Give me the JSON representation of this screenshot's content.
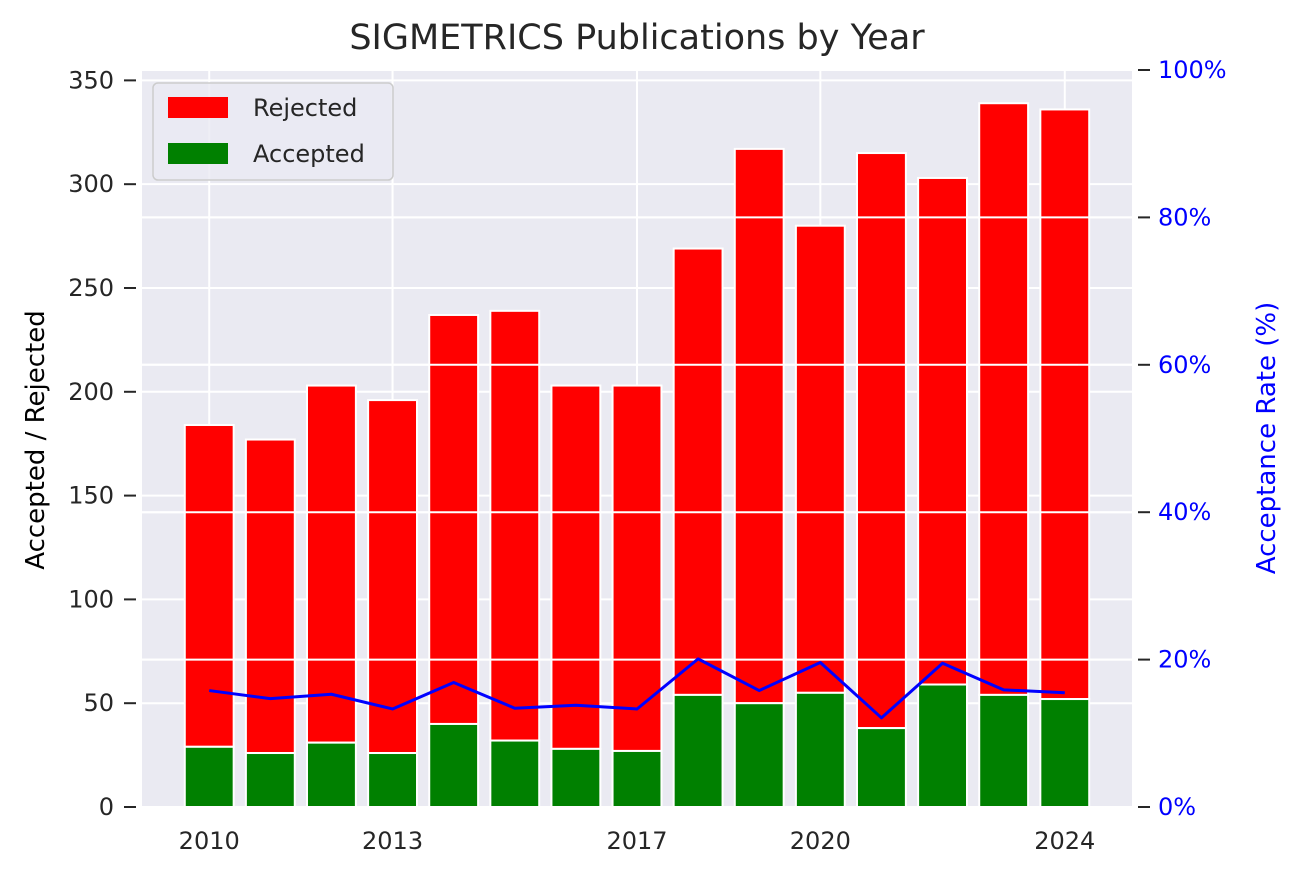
{
  "chart_data": {
    "type": "bar",
    "stacked": true,
    "title": "SIGMETRICS Publications by Year",
    "ylabel": "Accepted / Rejected",
    "ylabel_right": "Acceptance Rate (%)",
    "ylim": [
      0,
      355
    ],
    "ylim_right": [
      0,
      100
    ],
    "xlim": [
      2008.9,
      2025.1
    ],
    "grid": true,
    "legend_position": "top-left",
    "years": [
      2010,
      2011,
      2012,
      2013,
      2014,
      2015,
      2016,
      2017,
      2018,
      2019,
      2020,
      2021,
      2022,
      2023,
      2024
    ],
    "x_ticks": [
      2010,
      2013,
      2017,
      2020,
      2024
    ],
    "y_ticks": [
      0,
      50,
      100,
      150,
      200,
      250,
      300,
      350
    ],
    "y_ticks_right": [
      "0%",
      "20%",
      "40%",
      "60%",
      "80%",
      "100%"
    ],
    "y_ticks_right_values": [
      0,
      20,
      40,
      60,
      80,
      100
    ],
    "series": [
      {
        "name": "Accepted",
        "color": "#008000",
        "values": [
          29,
          26,
          31,
          26,
          40,
          32,
          28,
          27,
          54,
          50,
          55,
          38,
          59,
          54,
          52
        ]
      },
      {
        "name": "Rejected",
        "color": "#ff0000",
        "totals": [
          184,
          177,
          203,
          196,
          237,
          239,
          203,
          203,
          269,
          317,
          280,
          315,
          303,
          339,
          336
        ]
      }
    ],
    "line": {
      "color": "#0000ff",
      "values": [
        15.8,
        14.7,
        15.3,
        13.3,
        16.9,
        13.4,
        13.8,
        13.3,
        20.1,
        15.8,
        19.6,
        12.1,
        19.5,
        15.9,
        15.5
      ]
    }
  },
  "colors": {
    "plot_bg": "#eaeaf2",
    "grid": "#ffffff",
    "right_axis": "#0000ff"
  }
}
